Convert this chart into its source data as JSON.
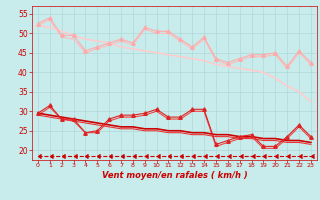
{
  "x": [
    0,
    1,
    2,
    3,
    4,
    5,
    6,
    7,
    8,
    9,
    10,
    11,
    12,
    13,
    14,
    15,
    16,
    17,
    18,
    19,
    20,
    21,
    22,
    23
  ],
  "background_color": "#c8ecec",
  "grid_color": "#b0d8d8",
  "xlabel": "Vent moyen/en rafales ( km/h )",
  "xlabel_color": "#cc0000",
  "tick_color": "#cc0000",
  "ylim": [
    17.5,
    57
  ],
  "yticks": [
    20,
    25,
    30,
    35,
    40,
    45,
    50,
    55
  ],
  "series": [
    {
      "name": "rafales_line1",
      "color": "#ffaaaa",
      "linewidth": 0.8,
      "marker": "^",
      "markersize": 2.5,
      "values": [
        52.5,
        54.0,
        49.5,
        49.5,
        45.5,
        46.5,
        47.5,
        48.5,
        47.5,
        51.5,
        50.5,
        50.5,
        48.5,
        46.5,
        49.0,
        43.5,
        42.5,
        43.5,
        44.5,
        44.5,
        45.0,
        41.5,
        45.5,
        42.5
      ]
    },
    {
      "name": "rafales_line2",
      "color": "#ffbbbb",
      "linewidth": 0.8,
      "marker": null,
      "markersize": 0,
      "values": [
        52.0,
        53.5,
        49.0,
        48.5,
        45.0,
        46.0,
        47.0,
        48.0,
        47.0,
        51.0,
        50.0,
        50.0,
        48.0,
        46.0,
        48.5,
        43.0,
        42.0,
        43.0,
        44.0,
        44.0,
        44.5,
        41.0,
        45.0,
        42.0
      ]
    },
    {
      "name": "trend_rafales",
      "color": "#ffcccc",
      "linewidth": 1.2,
      "marker": null,
      "markersize": 0,
      "values": [
        52.0,
        51.5,
        50.5,
        49.5,
        48.5,
        48.0,
        47.5,
        46.5,
        46.0,
        45.5,
        45.0,
        44.5,
        44.0,
        43.5,
        43.0,
        42.0,
        41.5,
        41.0,
        40.5,
        40.0,
        38.5,
        36.5,
        35.0,
        32.5
      ]
    },
    {
      "name": "moyen_line1",
      "color": "#dd2222",
      "linewidth": 0.8,
      "marker": "^",
      "markersize": 2.5,
      "values": [
        29.5,
        31.5,
        28.0,
        28.0,
        24.5,
        25.0,
        28.0,
        29.0,
        29.0,
        29.5,
        30.5,
        28.5,
        28.5,
        30.5,
        30.5,
        21.5,
        22.5,
        23.5,
        24.0,
        21.0,
        21.0,
        23.5,
        26.5,
        23.5
      ]
    },
    {
      "name": "moyen_line2",
      "color": "#ee4444",
      "linewidth": 0.8,
      "marker": null,
      "markersize": 0,
      "values": [
        29.0,
        31.0,
        28.0,
        27.5,
        24.5,
        24.5,
        27.5,
        28.5,
        28.5,
        29.0,
        30.0,
        28.0,
        28.0,
        30.0,
        30.0,
        21.0,
        22.0,
        23.0,
        23.5,
        20.5,
        20.5,
        23.0,
        26.0,
        23.0
      ]
    },
    {
      "name": "trend_moyen1",
      "color": "#cc0000",
      "linewidth": 1.2,
      "marker": null,
      "markersize": 0,
      "values": [
        29.5,
        29.0,
        28.5,
        28.0,
        27.5,
        27.0,
        26.5,
        26.0,
        26.0,
        25.5,
        25.5,
        25.0,
        25.0,
        24.5,
        24.5,
        24.0,
        24.0,
        23.5,
        23.5,
        23.0,
        23.0,
        22.5,
        22.5,
        22.0
      ]
    },
    {
      "name": "trend_moyen2",
      "color": "#ee3333",
      "linewidth": 0.8,
      "marker": null,
      "markersize": 0,
      "values": [
        29.0,
        28.5,
        28.0,
        27.5,
        27.0,
        26.5,
        26.0,
        25.5,
        25.5,
        25.0,
        25.0,
        24.5,
        24.5,
        24.0,
        24.0,
        23.5,
        23.5,
        23.0,
        23.0,
        22.5,
        22.5,
        22.0,
        22.0,
        21.5
      ]
    },
    {
      "name": "arrow_line",
      "color": "#cc0000",
      "linewidth": 0.8,
      "marker": 4,
      "markersize": 3,
      "dashed": true,
      "values": [
        18.5,
        18.5,
        18.5,
        18.5,
        18.5,
        18.5,
        18.5,
        18.5,
        18.5,
        18.5,
        18.5,
        18.5,
        18.5,
        18.5,
        18.5,
        18.5,
        18.5,
        18.5,
        18.5,
        18.5,
        18.5,
        18.5,
        18.5,
        18.5
      ]
    }
  ]
}
